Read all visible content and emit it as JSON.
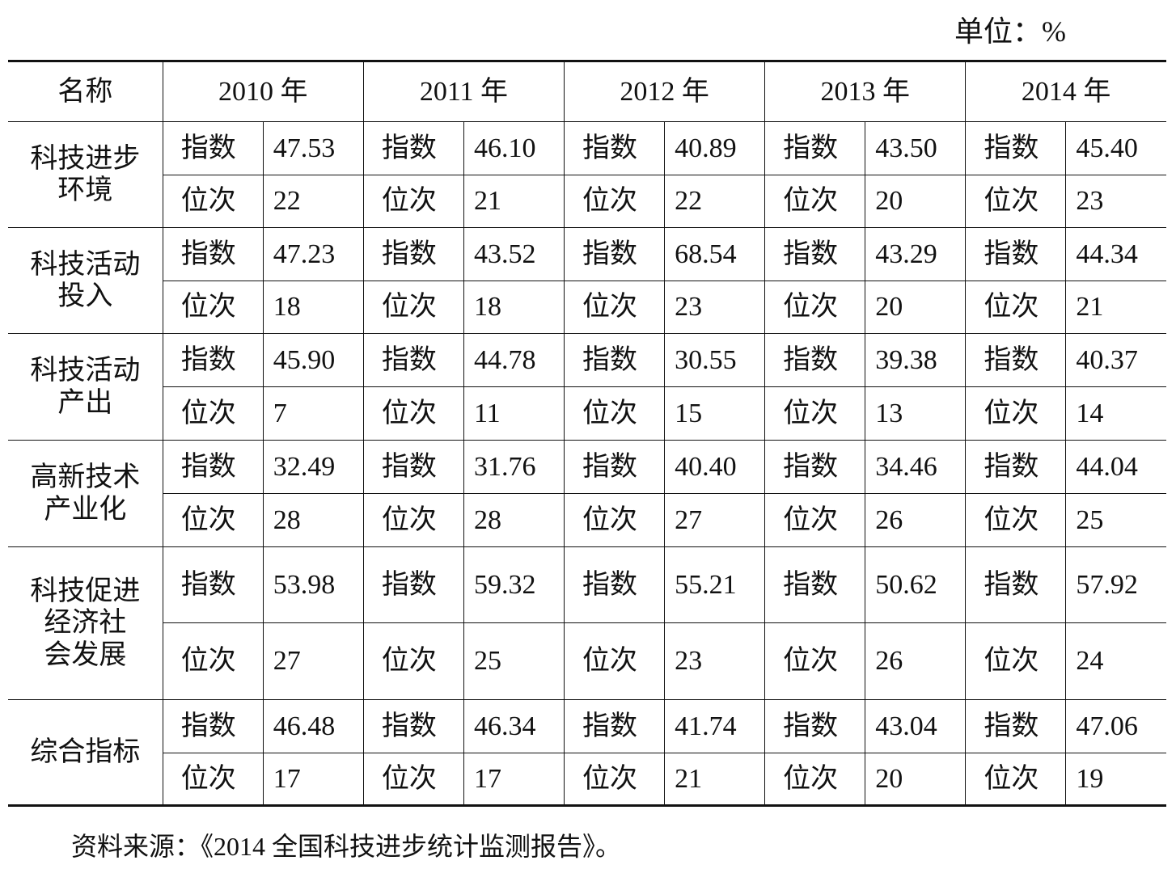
{
  "unit": "单位：%",
  "table": {
    "header": [
      "名称",
      "2010 年",
      "2011 年",
      "2012 年",
      "2013 年",
      "2014 年"
    ],
    "groups": [
      {
        "name": [
          "科技进步",
          "环境"
        ],
        "rows": [
          {
            "label": "指数",
            "values": [
              "47.53",
              "46.10",
              "40.89",
              "43.50",
              "45.40"
            ]
          },
          {
            "label": "位次",
            "values": [
              "22",
              "21",
              "22",
              "20",
              "23"
            ]
          }
        ]
      },
      {
        "name": [
          "科技活动",
          "投入"
        ],
        "rows": [
          {
            "label": "指数",
            "values": [
              "47.23",
              "43.52",
              "68.54",
              "43.29",
              "44.34"
            ]
          },
          {
            "label": "位次",
            "values": [
              "18",
              "18",
              "23",
              "20",
              "21"
            ]
          }
        ]
      },
      {
        "name": [
          "科技活动",
          "产出"
        ],
        "rows": [
          {
            "label": "指数",
            "values": [
              "45.90",
              "44.78",
              "30.55",
              "39.38",
              "40.37"
            ]
          },
          {
            "label": "位次",
            "values": [
              "7",
              "11",
              "15",
              "13",
              "14"
            ]
          }
        ]
      },
      {
        "name": [
          "高新技术",
          "产业化"
        ],
        "rows": [
          {
            "label": "指数",
            "values": [
              "32.49",
              "31.76",
              "40.40",
              "34.46",
              "44.04"
            ]
          },
          {
            "label": "位次",
            "values": [
              "28",
              "28",
              "27",
              "26",
              "25"
            ]
          }
        ]
      },
      {
        "name": [
          "科技促进",
          "经济社",
          "会发展"
        ],
        "rows": [
          {
            "label": "指数",
            "values": [
              "53.98",
              "59.32",
              "55.21",
              "50.62",
              "57.92"
            ]
          },
          {
            "label": "位次",
            "values": [
              "27",
              "25",
              "23",
              "26",
              "24"
            ]
          }
        ]
      },
      {
        "name": [
          "综合指标"
        ],
        "rows": [
          {
            "label": "指数",
            "values": [
              "46.48",
              "46.34",
              "41.74",
              "43.04",
              "47.06"
            ]
          },
          {
            "label": "位次",
            "values": [
              "17",
              "17",
              "21",
              "20",
              "19"
            ]
          }
        ]
      }
    ]
  },
  "source": "资料来源：《2014 全国科技进步统计监测报告》。"
}
